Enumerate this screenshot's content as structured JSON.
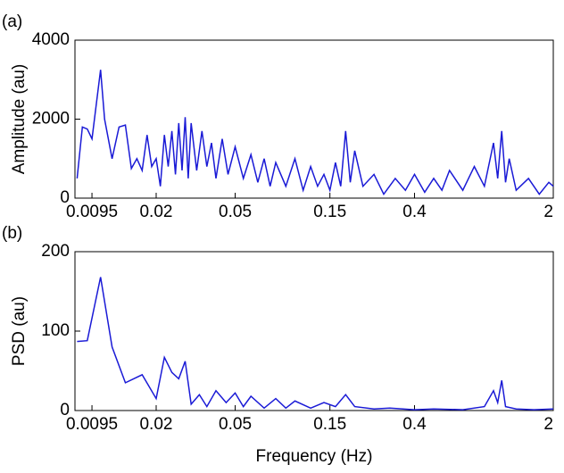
{
  "chart_data": [
    {
      "type": "line",
      "panel_label": "(a)",
      "ylabel": "Amplitude (au)",
      "log_x": true,
      "color": "#1a1ad6",
      "xlim": [
        0.0078,
        2
      ],
      "xticks": [
        0.0095,
        0.02,
        0.05,
        0.15,
        0.4,
        2
      ],
      "ylim": [
        0,
        4000
      ],
      "yticks": [
        0,
        2000,
        4000
      ],
      "x": [
        0.008,
        0.0085,
        0.009,
        0.0095,
        0.0105,
        0.011,
        0.012,
        0.013,
        0.014,
        0.015,
        0.016,
        0.017,
        0.018,
        0.019,
        0.02,
        0.021,
        0.022,
        0.023,
        0.024,
        0.025,
        0.026,
        0.027,
        0.028,
        0.029,
        0.03,
        0.032,
        0.034,
        0.036,
        0.038,
        0.04,
        0.043,
        0.046,
        0.05,
        0.055,
        0.06,
        0.065,
        0.07,
        0.075,
        0.08,
        0.09,
        0.1,
        0.11,
        0.12,
        0.13,
        0.14,
        0.15,
        0.16,
        0.17,
        0.18,
        0.19,
        0.2,
        0.22,
        0.25,
        0.28,
        0.32,
        0.36,
        0.4,
        0.45,
        0.5,
        0.55,
        0.6,
        0.7,
        0.8,
        0.9,
        1.0,
        1.05,
        1.1,
        1.15,
        1.2,
        1.3,
        1.5,
        1.7,
        1.9,
        2.0
      ],
      "values": [
        500,
        1800,
        1750,
        1500,
        3250,
        2000,
        1000,
        1800,
        1850,
        750,
        1000,
        700,
        1600,
        800,
        1000,
        300,
        1600,
        800,
        1700,
        600,
        1900,
        700,
        2050,
        500,
        1900,
        700,
        1700,
        800,
        1400,
        500,
        1500,
        600,
        1300,
        500,
        1100,
        400,
        1000,
        300,
        900,
        300,
        1000,
        200,
        800,
        300,
        600,
        200,
        900,
        300,
        1700,
        400,
        1200,
        300,
        600,
        100,
        500,
        200,
        600,
        150,
        500,
        200,
        700,
        200,
        800,
        300,
        1400,
        500,
        1700,
        400,
        1000,
        200,
        500,
        100,
        400,
        300
      ]
    },
    {
      "type": "line",
      "panel_label": "(b)",
      "ylabel": "PSD (au)",
      "xlabel": "Frequency (Hz)",
      "log_x": true,
      "color": "#1a1ad6",
      "xlim": [
        0.0078,
        2
      ],
      "xticks": [
        0.0095,
        0.02,
        0.05,
        0.15,
        0.4,
        2
      ],
      "ylim": [
        0,
        200
      ],
      "yticks": [
        0,
        100,
        200
      ],
      "x": [
        0.008,
        0.009,
        0.0105,
        0.012,
        0.014,
        0.017,
        0.02,
        0.022,
        0.024,
        0.026,
        0.028,
        0.03,
        0.033,
        0.036,
        0.04,
        0.045,
        0.05,
        0.055,
        0.06,
        0.07,
        0.08,
        0.09,
        0.1,
        0.12,
        0.14,
        0.16,
        0.18,
        0.2,
        0.25,
        0.3,
        0.4,
        0.5,
        0.7,
        0.9,
        1.0,
        1.05,
        1.1,
        1.15,
        1.3,
        1.6,
        2.0
      ],
      "values": [
        87,
        88,
        168,
        80,
        35,
        45,
        15,
        67,
        48,
        40,
        62,
        8,
        20,
        5,
        25,
        10,
        22,
        5,
        18,
        3,
        15,
        3,
        12,
        3,
        10,
        5,
        20,
        5,
        2,
        3,
        1,
        2,
        1,
        5,
        25,
        10,
        38,
        5,
        2,
        1,
        2
      ]
    }
  ]
}
